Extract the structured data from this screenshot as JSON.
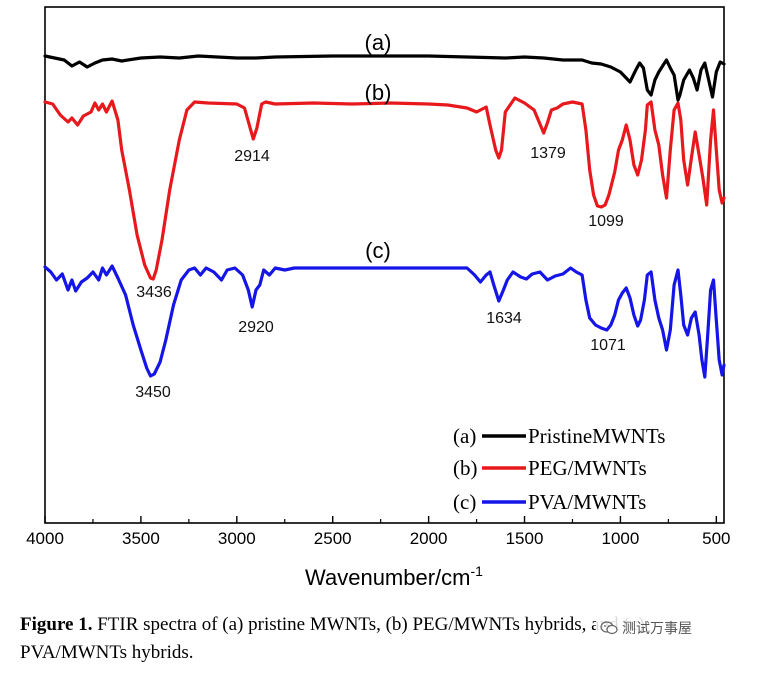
{
  "chart_data": {
    "type": "line",
    "xlabel": "Wavenumber/cm",
    "xlabel_sup": "-1",
    "xlim": [
      4000,
      460
    ],
    "x_ticks": [
      4000,
      3500,
      3000,
      2500,
      2000,
      1500,
      1000,
      500
    ],
    "y_ticks": [],
    "curve_labels": [
      "(a)",
      "(b)",
      "(c)"
    ],
    "series": [
      {
        "name": "PristineMWNTs",
        "legend_prefix": "(a)",
        "color": "#000000",
        "points": [
          [
            4000,
            56
          ],
          [
            3950,
            58
          ],
          [
            3900,
            60
          ],
          [
            3860,
            66
          ],
          [
            3820,
            62
          ],
          [
            3780,
            67
          ],
          [
            3740,
            63
          ],
          [
            3700,
            60
          ],
          [
            3650,
            59
          ],
          [
            3600,
            61
          ],
          [
            3500,
            58
          ],
          [
            3400,
            57
          ],
          [
            3300,
            58
          ],
          [
            3200,
            56
          ],
          [
            3100,
            57
          ],
          [
            3000,
            58
          ],
          [
            2900,
            58
          ],
          [
            2800,
            57
          ],
          [
            2500,
            56
          ],
          [
            2000,
            56
          ],
          [
            1800,
            57
          ],
          [
            1600,
            58
          ],
          [
            1500,
            57
          ],
          [
            1400,
            58
          ],
          [
            1300,
            60
          ],
          [
            1200,
            60
          ],
          [
            1150,
            63
          ],
          [
            1100,
            64
          ],
          [
            1050,
            67
          ],
          [
            1000,
            72
          ],
          [
            970,
            78
          ],
          [
            950,
            82
          ],
          [
            920,
            70
          ],
          [
            900,
            63
          ],
          [
            880,
            68
          ],
          [
            860,
            90
          ],
          [
            840,
            95
          ],
          [
            820,
            80
          ],
          [
            800,
            72
          ],
          [
            780,
            66
          ],
          [
            760,
            60
          ],
          [
            740,
            68
          ],
          [
            720,
            75
          ],
          [
            700,
            100
          ],
          [
            690,
            95
          ],
          [
            670,
            80
          ],
          [
            640,
            70
          ],
          [
            620,
            78
          ],
          [
            600,
            90
          ],
          [
            580,
            70
          ],
          [
            560,
            63
          ],
          [
            540,
            80
          ],
          [
            520,
            97
          ],
          [
            500,
            72
          ],
          [
            480,
            62
          ],
          [
            460,
            64
          ]
        ]
      },
      {
        "name": "PEG/MWNTs",
        "legend_prefix": "(b)",
        "color": "#e8191c",
        "points": [
          [
            4000,
            102
          ],
          [
            3960,
            104
          ],
          [
            3920,
            115
          ],
          [
            3880,
            122
          ],
          [
            3860,
            118
          ],
          [
            3830,
            125
          ],
          [
            3800,
            116
          ],
          [
            3760,
            112
          ],
          [
            3740,
            103
          ],
          [
            3720,
            110
          ],
          [
            3700,
            104
          ],
          [
            3680,
            112
          ],
          [
            3650,
            101
          ],
          [
            3620,
            120
          ],
          [
            3600,
            150
          ],
          [
            3560,
            190
          ],
          [
            3520,
            235
          ],
          [
            3480,
            265
          ],
          [
            3450,
            278
          ],
          [
            3436,
            279
          ],
          [
            3420,
            270
          ],
          [
            3390,
            240
          ],
          [
            3350,
            190
          ],
          [
            3300,
            140
          ],
          [
            3260,
            110
          ],
          [
            3220,
            102
          ],
          [
            3150,
            103
          ],
          [
            3000,
            104
          ],
          [
            2960,
            108
          ],
          [
            2935,
            125
          ],
          [
            2914,
            139
          ],
          [
            2895,
            128
          ],
          [
            2870,
            104
          ],
          [
            2850,
            102
          ],
          [
            2800,
            104
          ],
          [
            2600,
            103
          ],
          [
            2400,
            104
          ],
          [
            2200,
            103
          ],
          [
            2000,
            104
          ],
          [
            1900,
            105
          ],
          [
            1800,
            108
          ],
          [
            1750,
            112
          ],
          [
            1700,
            107
          ],
          [
            1680,
            125
          ],
          [
            1650,
            150
          ],
          [
            1634,
            158
          ],
          [
            1620,
            150
          ],
          [
            1600,
            112
          ],
          [
            1550,
            98
          ],
          [
            1500,
            103
          ],
          [
            1450,
            110
          ],
          [
            1400,
            133
          ],
          [
            1379,
            122
          ],
          [
            1360,
            110
          ],
          [
            1330,
            108
          ],
          [
            1300,
            104
          ],
          [
            1250,
            102
          ],
          [
            1200,
            104
          ],
          [
            1180,
            130
          ],
          [
            1160,
            170
          ],
          [
            1140,
            195
          ],
          [
            1120,
            206
          ],
          [
            1099,
            207
          ],
          [
            1080,
            205
          ],
          [
            1060,
            195
          ],
          [
            1030,
            172
          ],
          [
            1010,
            150
          ],
          [
            990,
            140
          ],
          [
            970,
            125
          ],
          [
            950,
            140
          ],
          [
            930,
            165
          ],
          [
            910,
            175
          ],
          [
            890,
            160
          ],
          [
            870,
            130
          ],
          [
            860,
            105
          ],
          [
            840,
            102
          ],
          [
            820,
            130
          ],
          [
            800,
            145
          ],
          [
            780,
            175
          ],
          [
            760,
            198
          ],
          [
            740,
            150
          ],
          [
            720,
            110
          ],
          [
            700,
            103
          ],
          [
            685,
            120
          ],
          [
            670,
            160
          ],
          [
            650,
            185
          ],
          [
            630,
            158
          ],
          [
            610,
            132
          ],
          [
            590,
            155
          ],
          [
            570,
            178
          ],
          [
            550,
            205
          ],
          [
            530,
            140
          ],
          [
            515,
            110
          ],
          [
            500,
            150
          ],
          [
            485,
            190
          ],
          [
            470,
            203
          ],
          [
            460,
            198
          ]
        ]
      },
      {
        "name": "PVA/MWNTs",
        "legend_prefix": "(c)",
        "color": "#1515e8",
        "points": [
          [
            4000,
            267
          ],
          [
            3970,
            272
          ],
          [
            3940,
            280
          ],
          [
            3910,
            274
          ],
          [
            3880,
            290
          ],
          [
            3860,
            280
          ],
          [
            3840,
            291
          ],
          [
            3810,
            282
          ],
          [
            3780,
            278
          ],
          [
            3750,
            272
          ],
          [
            3720,
            280
          ],
          [
            3700,
            268
          ],
          [
            3680,
            275
          ],
          [
            3650,
            266
          ],
          [
            3620,
            278
          ],
          [
            3580,
            295
          ],
          [
            3540,
            325
          ],
          [
            3500,
            350
          ],
          [
            3470,
            368
          ],
          [
            3450,
            376
          ],
          [
            3430,
            374
          ],
          [
            3400,
            362
          ],
          [
            3370,
            340
          ],
          [
            3330,
            305
          ],
          [
            3290,
            280
          ],
          [
            3250,
            270
          ],
          [
            3220,
            268
          ],
          [
            3190,
            275
          ],
          [
            3160,
            268
          ],
          [
            3120,
            272
          ],
          [
            3080,
            280
          ],
          [
            3050,
            270
          ],
          [
            3010,
            268
          ],
          [
            2970,
            275
          ],
          [
            2940,
            290
          ],
          [
            2920,
            307
          ],
          [
            2900,
            290
          ],
          [
            2880,
            285
          ],
          [
            2860,
            270
          ],
          [
            2830,
            275
          ],
          [
            2800,
            268
          ],
          [
            2750,
            270
          ],
          [
            2700,
            268
          ],
          [
            2500,
            268
          ],
          [
            2000,
            268
          ],
          [
            1800,
            268
          ],
          [
            1760,
            275
          ],
          [
            1730,
            282
          ],
          [
            1700,
            275
          ],
          [
            1680,
            272
          ],
          [
            1660,
            285
          ],
          [
            1634,
            301
          ],
          [
            1610,
            290
          ],
          [
            1590,
            280
          ],
          [
            1560,
            272
          ],
          [
            1520,
            277
          ],
          [
            1490,
            279
          ],
          [
            1460,
            274
          ],
          [
            1420,
            272
          ],
          [
            1380,
            280
          ],
          [
            1340,
            276
          ],
          [
            1300,
            274
          ],
          [
            1260,
            268
          ],
          [
            1230,
            272
          ],
          [
            1200,
            275
          ],
          [
            1180,
            300
          ],
          [
            1160,
            318
          ],
          [
            1130,
            325
          ],
          [
            1100,
            328
          ],
          [
            1071,
            330
          ],
          [
            1050,
            325
          ],
          [
            1030,
            315
          ],
          [
            1010,
            300
          ],
          [
            990,
            293
          ],
          [
            970,
            288
          ],
          [
            950,
            298
          ],
          [
            930,
            315
          ],
          [
            910,
            326
          ],
          [
            895,
            320
          ],
          [
            875,
            300
          ],
          [
            860,
            275
          ],
          [
            840,
            272
          ],
          [
            820,
            300
          ],
          [
            800,
            318
          ],
          [
            780,
            330
          ],
          [
            760,
            350
          ],
          [
            740,
            330
          ],
          [
            720,
            285
          ],
          [
            700,
            270
          ],
          [
            685,
            295
          ],
          [
            670,
            325
          ],
          [
            650,
            335
          ],
          [
            630,
            318
          ],
          [
            610,
            312
          ],
          [
            590,
            335
          ],
          [
            575,
            360
          ],
          [
            560,
            377
          ],
          [
            545,
            335
          ],
          [
            530,
            290
          ],
          [
            515,
            280
          ],
          [
            500,
            320
          ],
          [
            485,
            360
          ],
          [
            470,
            375
          ],
          [
            460,
            365
          ]
        ]
      }
    ],
    "peak_labels": [
      "3436",
      "2914",
      "1379",
      "1099",
      "3450",
      "2920",
      "1634",
      "1071"
    ]
  },
  "caption": {
    "bold": "Figure 1.",
    "text": "FTIR spectra of (a) pristine MWNTs, (b) PEG/MWNTs hybrids, and (c) PVA/MWNTs hybrids."
  },
  "watermark": {
    "text": "测试万事屋",
    "icon": "wechat-icon"
  }
}
